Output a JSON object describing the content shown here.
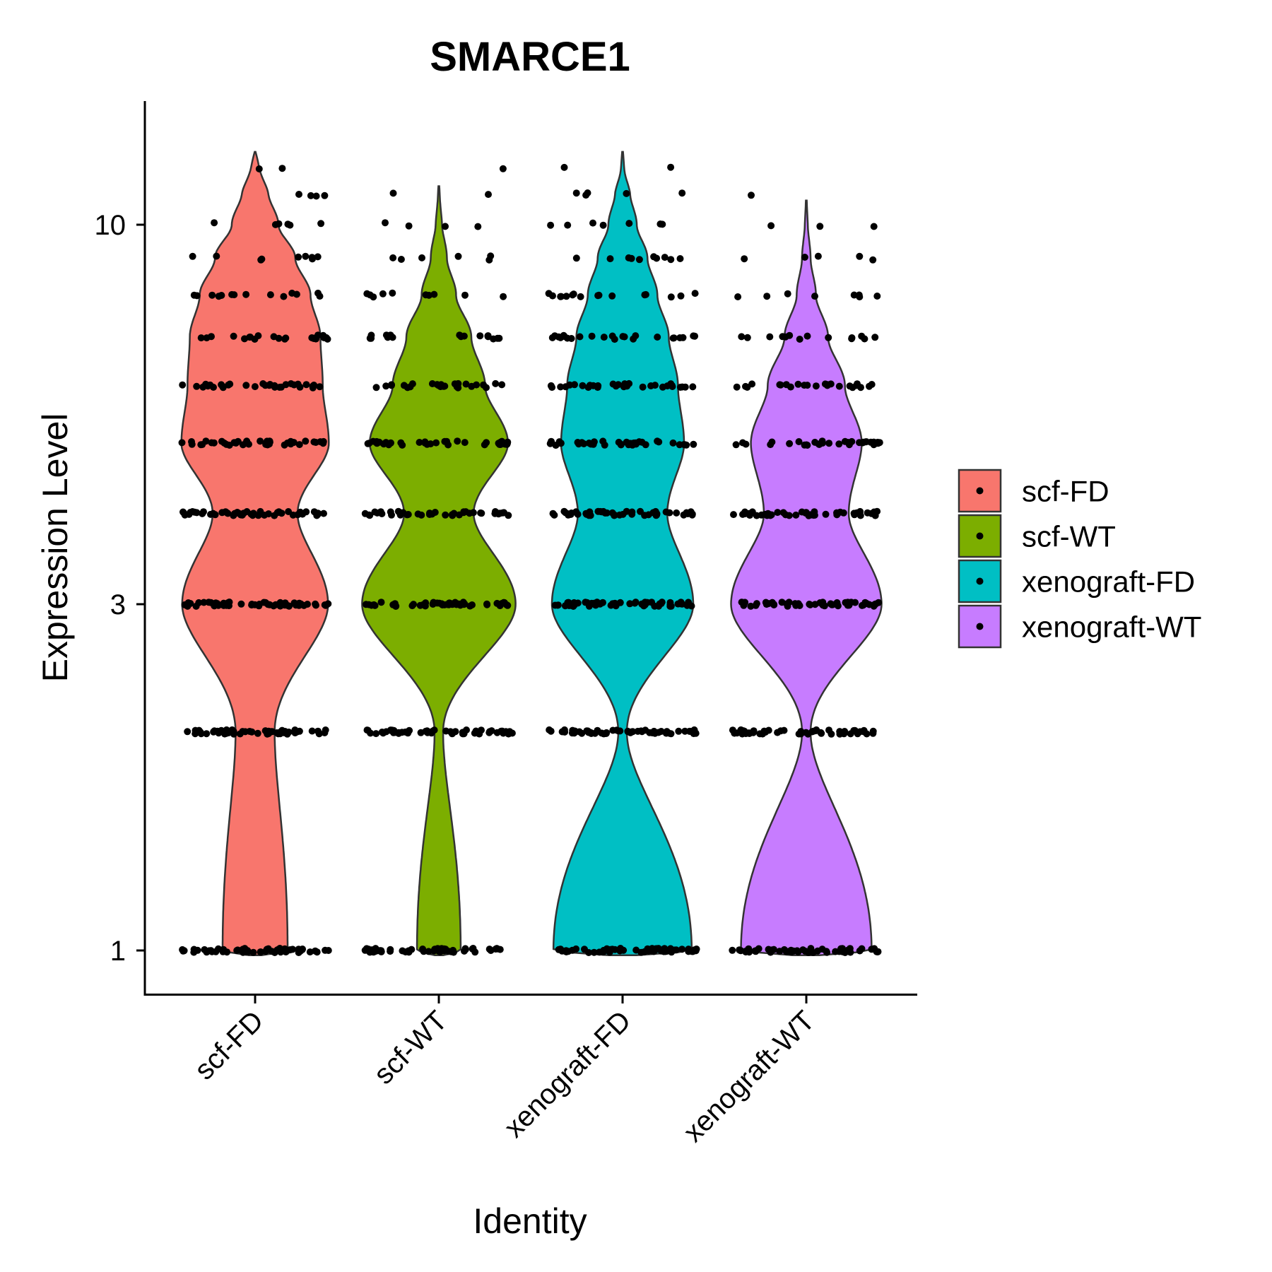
{
  "chart_data": {
    "type": "violin",
    "title": "SMARCE1",
    "xlabel": "Identity",
    "ylabel": "Expression Level",
    "y_scale": "log",
    "ylim": [
      0.88,
      14
    ],
    "yticks": [
      1,
      3,
      10
    ],
    "categories": [
      "scf-FD",
      "scf-WT",
      "xenograft-FD",
      "xenograft-WT"
    ],
    "colors": [
      "#F8766D",
      "#7CAE00",
      "#00BFC4",
      "#C77CFF"
    ],
    "point_color": "#000000",
    "expression_levels": [
      1,
      2,
      3,
      4,
      5,
      6,
      7,
      8,
      9,
      10,
      11,
      12
    ],
    "series": [
      {
        "name": "scf-FD",
        "color": "#F8766D",
        "max": 12.6,
        "density": [
          0.42,
          0.25,
          0.95,
          0.55,
          0.96,
          0.88,
          0.85,
          0.72,
          0.52,
          0.3,
          0.18,
          0.1
        ],
        "jitter_counts": [
          60,
          55,
          55,
          50,
          40,
          32,
          22,
          14,
          9,
          6,
          4,
          2
        ]
      },
      {
        "name": "scf-WT",
        "color": "#7CAE00",
        "max": 11.3,
        "density": [
          0.28,
          0.05,
          1.0,
          0.45,
          0.9,
          0.6,
          0.42,
          0.22,
          0.1,
          0.04,
          0.02,
          0.01
        ],
        "jitter_counts": [
          55,
          50,
          50,
          45,
          35,
          26,
          18,
          10,
          6,
          4,
          2,
          1
        ]
      },
      {
        "name": "xenograft-FD",
        "color": "#00BFC4",
        "max": 12.6,
        "density": [
          0.9,
          0.05,
          0.92,
          0.58,
          0.8,
          0.72,
          0.6,
          0.45,
          0.32,
          0.18,
          0.1,
          0.03
        ],
        "jitter_counts": [
          60,
          55,
          55,
          50,
          40,
          32,
          24,
          16,
          10,
          7,
          5,
          2
        ]
      },
      {
        "name": "xenograft-WT",
        "color": "#C77CFF",
        "max": 10.8,
        "density": [
          0.85,
          0.05,
          0.98,
          0.55,
          0.72,
          0.5,
          0.28,
          0.12,
          0.05,
          0.02,
          0.01,
          0.0
        ],
        "jitter_counts": [
          55,
          50,
          50,
          45,
          35,
          24,
          14,
          8,
          5,
          3,
          1,
          0
        ]
      }
    ],
    "legend": {
      "position": "right",
      "entries": [
        "scf-FD",
        "scf-WT",
        "xenograft-FD",
        "xenograft-WT"
      ]
    }
  }
}
